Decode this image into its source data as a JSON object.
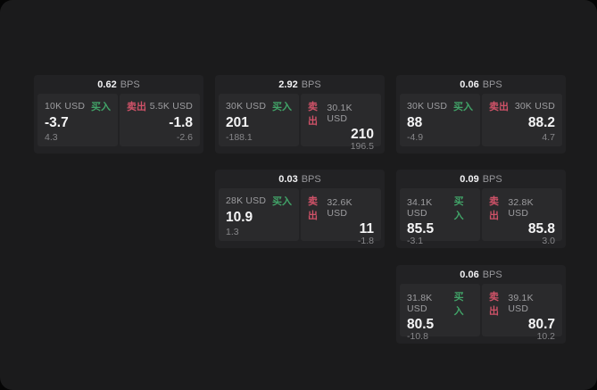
{
  "labels": {
    "bps": "BPS",
    "buy": "买入",
    "sell": "卖出"
  },
  "colors": {
    "buy_accent": "#41a368",
    "sell_accent": "#cf5268",
    "page_background": "#1b1b1c",
    "card_background": "#222224",
    "panel_background": "#2a2a2c"
  },
  "cards": [
    {
      "bps": "0.62",
      "row": 1,
      "col": 1,
      "buy": {
        "size": "10K USD",
        "value": "-3.7",
        "sub": "4.3"
      },
      "sell": {
        "size": "5.5K USD",
        "value": "-1.8",
        "sub": "-2.6"
      }
    },
    {
      "bps": "2.92",
      "row": 1,
      "col": 2,
      "buy": {
        "size": "30K USD",
        "value": "201",
        "sub": "-188.1"
      },
      "sell": {
        "size": "30.1K USD",
        "value": "210",
        "sub": "196.5"
      }
    },
    {
      "bps": "0.06",
      "row": 1,
      "col": 3,
      "buy": {
        "size": "30K USD",
        "value": "88",
        "sub": "-4.9"
      },
      "sell": {
        "size": "30K USD",
        "value": "88.2",
        "sub": "4.7"
      }
    },
    {
      "bps": "0.03",
      "row": 2,
      "col": 2,
      "buy": {
        "size": "28K USD",
        "value": "10.9",
        "sub": "1.3"
      },
      "sell": {
        "size": "32.6K USD",
        "value": "11",
        "sub": "-1.8"
      }
    },
    {
      "bps": "0.09",
      "row": 2,
      "col": 3,
      "buy": {
        "size": "34.1K USD",
        "value": "85.5",
        "sub": "-3.1"
      },
      "sell": {
        "size": "32.8K USD",
        "value": "85.8",
        "sub": "3.0"
      }
    },
    {
      "bps": "0.06",
      "row": 3,
      "col": 3,
      "buy": {
        "size": "31.8K USD",
        "value": "80.5",
        "sub": "-10.8"
      },
      "sell": {
        "size": "39.1K USD",
        "value": "80.7",
        "sub": "10.2"
      }
    }
  ]
}
